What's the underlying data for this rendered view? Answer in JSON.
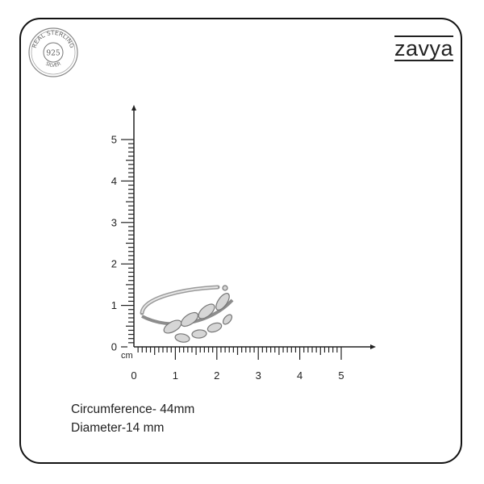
{
  "brand": {
    "logo_text": "zavya"
  },
  "seal": {
    "top_text": "REAL STERLING",
    "center_text": "925",
    "bottom_text": "SILVER"
  },
  "scale": {
    "unit": "cm",
    "x_ticks": [
      "0",
      "1",
      "2",
      "3",
      "4",
      "5"
    ],
    "y_ticks": [
      "0",
      "1",
      "2",
      "3",
      "4",
      "5"
    ]
  },
  "product": {
    "circumference": "Circumference- 44mm",
    "diameter": "Diameter-14 mm"
  },
  "colors": {
    "line": "#222222",
    "ring": "#b8b8b8"
  }
}
